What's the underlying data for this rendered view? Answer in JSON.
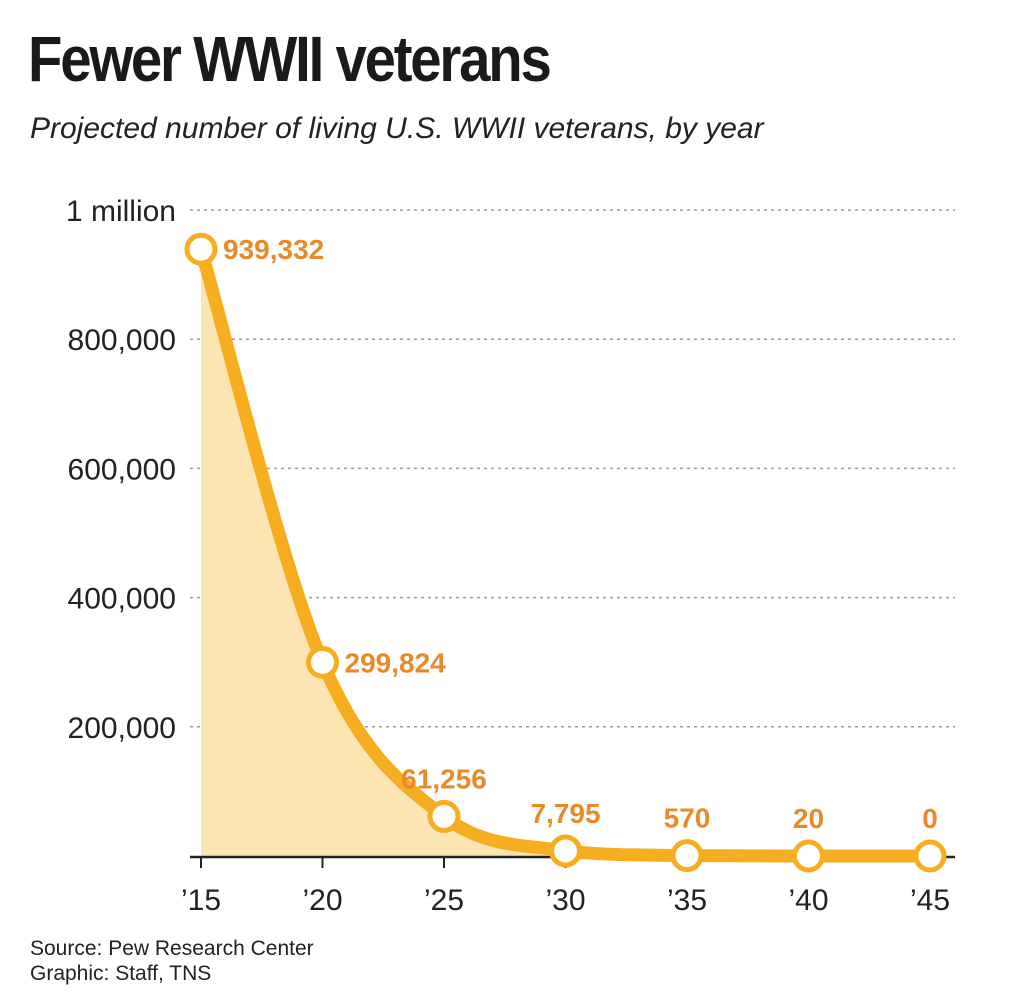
{
  "colors": {
    "line": "#f6ad1f",
    "fill": "#fae5b3",
    "label": "#e8892a",
    "grid": "#9a9a9a",
    "axis": "#222222"
  },
  "chart_data": {
    "type": "line",
    "title": "Fewer WWII veterans",
    "subtitle": "Projected number of living U.S. WWII veterans, by year",
    "x": [
      2015,
      2020,
      2025,
      2030,
      2035,
      2040,
      2045
    ],
    "x_tick_labels": [
      "’15",
      "’20",
      "’25",
      "’30",
      "’35",
      "’40",
      "’45"
    ],
    "values": [
      939332,
      299824,
      61256,
      7795,
      570,
      20,
      0
    ],
    "data_labels": [
      "939,332",
      "299,824",
      "61,256",
      "7,795",
      "570",
      "20",
      "0"
    ],
    "ylim": [
      0,
      1000000
    ],
    "y_ticks": [
      200000,
      400000,
      600000,
      800000,
      1000000
    ],
    "y_tick_labels": [
      "200,000",
      "400,000",
      "600,000",
      "800,000",
      "1 million"
    ],
    "grid": true,
    "area_fill": true
  },
  "footer": {
    "source": "Source: Pew Research Center",
    "credit": "Graphic: Staff, TNS"
  }
}
